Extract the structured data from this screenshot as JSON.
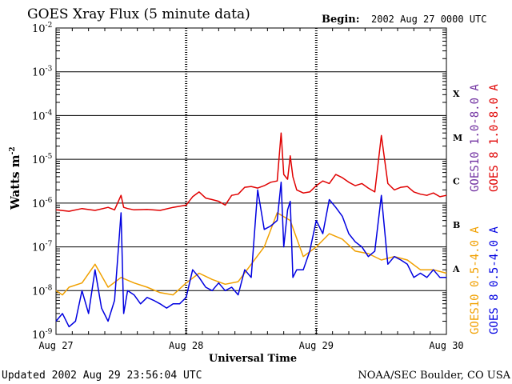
{
  "title": "GOES Xray Flux (5 minute data)",
  "begin_label": "Begin:",
  "begin_value": "2002 Aug 27 0000 UTC",
  "footer_left": "Updated 2002 Aug 29 23:56:04 UTC",
  "footer_right": "NOAA/SEC Boulder, CO USA",
  "colors": {
    "goes10_long": "#7030a0",
    "goes8_long": "#e00000",
    "goes10_short": "#f0a000",
    "goes8_short": "#0000e0"
  },
  "chart_data": {
    "type": "line",
    "title": "GOES Xray Flux (5 minute data)",
    "xlabel": "Universal Time",
    "ylabel": "Watts m",
    "ylabel_superscript": "-2",
    "yscale": "log",
    "ylim": [
      1e-09,
      0.01
    ],
    "y_ticks": [
      {
        "base": "10",
        "exp": "-2",
        "value": 0.01
      },
      {
        "base": "10",
        "exp": "-3",
        "value": 0.001
      },
      {
        "base": "10",
        "exp": "-4",
        "value": 0.0001
      },
      {
        "base": "10",
        "exp": "-5",
        "value": 1e-05
      },
      {
        "base": "10",
        "exp": "-6",
        "value": 1e-06
      },
      {
        "base": "10",
        "exp": "-7",
        "value": 1e-07
      },
      {
        "base": "10",
        "exp": "-8",
        "value": 1e-08
      },
      {
        "base": "10",
        "exp": "-9",
        "value": 1e-09
      }
    ],
    "x_ticks": [
      "Aug 27",
      "Aug 28",
      "Aug 29",
      "Aug 30"
    ],
    "flare_classes": [
      {
        "label": "X",
        "value": 0.0001
      },
      {
        "label": "M",
        "value": 1e-05
      },
      {
        "label": "C",
        "value": 1e-06
      },
      {
        "label": "B",
        "value": 1e-07
      },
      {
        "label": "A",
        "value": 1e-08
      }
    ],
    "grid": true,
    "series": [
      {
        "name": "GOES 8 1.0-8.0 A",
        "color": "#e00000",
        "x_days": [
          0.0,
          0.1,
          0.2,
          0.3,
          0.4,
          0.45,
          0.5,
          0.52,
          0.55,
          0.6,
          0.7,
          0.8,
          0.9,
          1.0,
          1.05,
          1.1,
          1.15,
          1.2,
          1.25,
          1.3,
          1.35,
          1.4,
          1.45,
          1.5,
          1.55,
          1.6,
          1.65,
          1.7,
          1.73,
          1.75,
          1.78,
          1.8,
          1.82,
          1.85,
          1.9,
          1.95,
          2.0,
          2.05,
          2.1,
          2.15,
          2.2,
          2.25,
          2.3,
          2.35,
          2.4,
          2.45,
          2.5,
          2.55,
          2.6,
          2.65,
          2.7,
          2.75,
          2.8,
          2.85,
          2.9,
          2.95,
          3.0
        ],
        "y": [
          7e-07,
          6.5e-07,
          7.5e-07,
          6.8e-07,
          8e-07,
          7e-07,
          1.5e-06,
          8e-07,
          7.5e-07,
          7e-07,
          7.2e-07,
          6.8e-07,
          8e-07,
          9e-07,
          1.4e-06,
          1.8e-06,
          1.3e-06,
          1.2e-06,
          1.1e-06,
          9e-07,
          1.5e-06,
          1.6e-06,
          2.3e-06,
          2.4e-06,
          2.2e-06,
          2.5e-06,
          3e-06,
          3.2e-06,
          4e-05,
          4.5e-06,
          3.5e-06,
          1.2e-05,
          4e-06,
          2e-06,
          1.7e-06,
          1.8e-06,
          2.5e-06,
          3.2e-06,
          2.8e-06,
          4.5e-06,
          3.8e-06,
          3e-06,
          2.5e-06,
          2.8e-06,
          2.2e-06,
          1.8e-06,
          3.5e-05,
          2.8e-06,
          2e-06,
          2.3e-06,
          2.4e-06,
          1.8e-06,
          1.6e-06,
          1.5e-06,
          1.7e-06,
          1.4e-06,
          1.5e-06
        ]
      },
      {
        "name": "GOES10 1.0-8.0 A",
        "color": "#7030a0",
        "x_days": [],
        "y": []
      },
      {
        "name": "GOES 8 0.5-4.0 A",
        "color": "#0000e0",
        "x_days": [
          0.0,
          0.05,
          0.1,
          0.15,
          0.2,
          0.25,
          0.3,
          0.35,
          0.4,
          0.45,
          0.5,
          0.52,
          0.55,
          0.6,
          0.65,
          0.7,
          0.75,
          0.8,
          0.85,
          0.9,
          0.95,
          1.0,
          1.05,
          1.1,
          1.15,
          1.2,
          1.25,
          1.3,
          1.35,
          1.4,
          1.45,
          1.5,
          1.55,
          1.6,
          1.65,
          1.7,
          1.73,
          1.75,
          1.78,
          1.8,
          1.82,
          1.85,
          1.9,
          1.95,
          2.0,
          2.05,
          2.1,
          2.15,
          2.2,
          2.25,
          2.3,
          2.35,
          2.4,
          2.45,
          2.5,
          2.55,
          2.6,
          2.65,
          2.7,
          2.75,
          2.8,
          2.85,
          2.9,
          2.95,
          3.0
        ],
        "y": [
          2e-09,
          3e-09,
          1.5e-09,
          2e-09,
          1e-08,
          3e-09,
          3e-08,
          4e-09,
          2e-09,
          6e-09,
          6e-07,
          3e-09,
          1e-08,
          8e-09,
          5e-09,
          7e-09,
          6e-09,
          5e-09,
          4e-09,
          5e-09,
          5e-09,
          7e-09,
          3e-08,
          2e-08,
          1.2e-08,
          1e-08,
          1.5e-08,
          1e-08,
          1.2e-08,
          8e-09,
          3e-08,
          2e-08,
          2e-06,
          2.5e-07,
          3e-07,
          4e-07,
          3e-06,
          1e-07,
          7e-07,
          1.1e-06,
          2e-08,
          3e-08,
          3e-08,
          8e-08,
          4e-07,
          2e-07,
          1.2e-06,
          8e-07,
          5e-07,
          2e-07,
          1.3e-07,
          1e-07,
          6e-08,
          8e-08,
          1.5e-06,
          4e-08,
          6e-08,
          5e-08,
          4e-08,
          2e-08,
          2.5e-08,
          2e-08,
          3e-08,
          2e-08,
          2e-08
        ]
      },
      {
        "name": "GOES10 0.5-4.0 A",
        "color": "#f0a000",
        "x_days": [
          0.0,
          0.05,
          0.1,
          0.2,
          0.3,
          0.4,
          0.5,
          0.6,
          0.7,
          0.8,
          0.9,
          1.0,
          1.1,
          1.2,
          1.3,
          1.4,
          1.5,
          1.6,
          1.7,
          1.8,
          1.9,
          2.0,
          2.1,
          2.2,
          2.3,
          2.4,
          2.5,
          2.6,
          2.7,
          2.8,
          2.9,
          3.0
        ],
        "y": [
          1e-08,
          8e-09,
          1.2e-08,
          1.5e-08,
          4e-08,
          1.2e-08,
          2e-08,
          1.5e-08,
          1.2e-08,
          9e-09,
          8e-09,
          1.5e-08,
          2.5e-08,
          1.8e-08,
          1.4e-08,
          1.6e-08,
          4e-08,
          1e-07,
          6e-07,
          4e-07,
          6e-08,
          1e-07,
          2e-07,
          1.5e-07,
          8e-08,
          7e-08,
          5e-08,
          6e-08,
          5e-08,
          3e-08,
          3e-08,
          2.5e-08
        ]
      }
    ]
  }
}
